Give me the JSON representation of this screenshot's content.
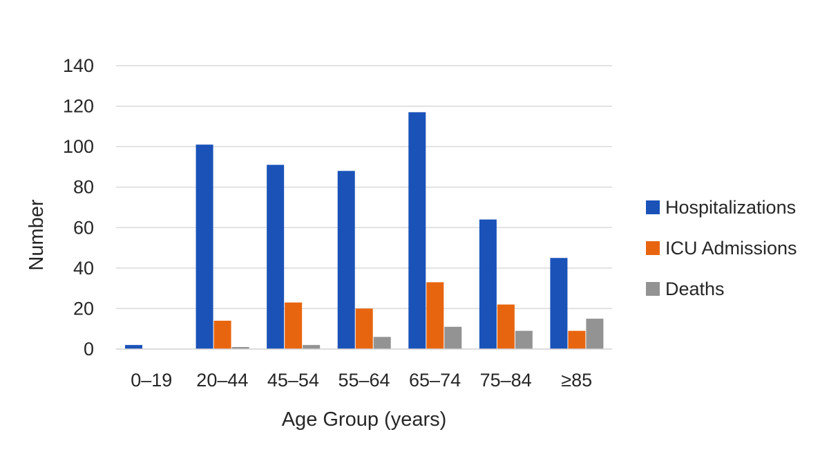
{
  "chart_data": {
    "type": "bar",
    "title": "",
    "xlabel": "Age Group (years)",
    "ylabel": "Number",
    "ylim": [
      0,
      140
    ],
    "yticks": [
      0,
      20,
      40,
      60,
      80,
      100,
      120,
      140
    ],
    "grid": true,
    "legend_position": "right",
    "categories": [
      "0–19",
      "20–44",
      "45–54",
      "55–64",
      "65–74",
      "75–84",
      "≥85"
    ],
    "series": [
      {
        "name": "Hospitalizations",
        "color": "#1a52b8",
        "values": [
          2,
          101,
          91,
          88,
          117,
          64,
          45
        ]
      },
      {
        "name": "ICU Admissions",
        "color": "#e8650f",
        "values": [
          0,
          14,
          23,
          20,
          33,
          22,
          9
        ]
      },
      {
        "name": "Deaths",
        "color": "#939393",
        "values": [
          0,
          1,
          2,
          6,
          11,
          9,
          15
        ]
      }
    ]
  }
}
